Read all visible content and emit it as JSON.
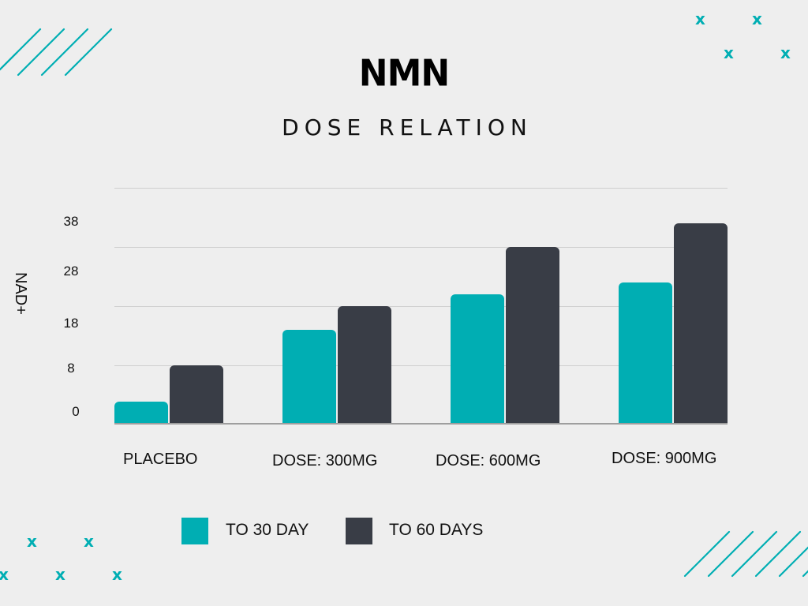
{
  "header": {
    "title": "NMN",
    "subtitle": "DOSE RELATION"
  },
  "colors": {
    "accent_teal": "#00aeb3",
    "dark_slate": "#393d46",
    "background": "#eeeeee"
  },
  "decorations": {
    "x_glyph": "x",
    "top_right_x_marks": 4,
    "bottom_left_x_marks": 5
  },
  "chart_data": {
    "type": "bar",
    "title": "NMN",
    "subtitle": "DOSE RELATION",
    "xlabel": "",
    "ylabel": "NAD+",
    "y_ticks": [
      "0",
      "8",
      "18",
      "28",
      "38"
    ],
    "ylim": [
      0,
      38
    ],
    "grid": true,
    "legend_position": "bottom",
    "categories": [
      "PLACEBO",
      "DOSE: 300MG",
      "DOSE: 600MG",
      "DOSE: 900MG"
    ],
    "series": [
      {
        "name": "TO 30 DAY",
        "color": "#00aeb3",
        "values": [
          3,
          14,
          20,
          22
        ]
      },
      {
        "name": "TO 60 DAYS",
        "color": "#393d46",
        "values": [
          8,
          18,
          28,
          32
        ]
      }
    ]
  }
}
